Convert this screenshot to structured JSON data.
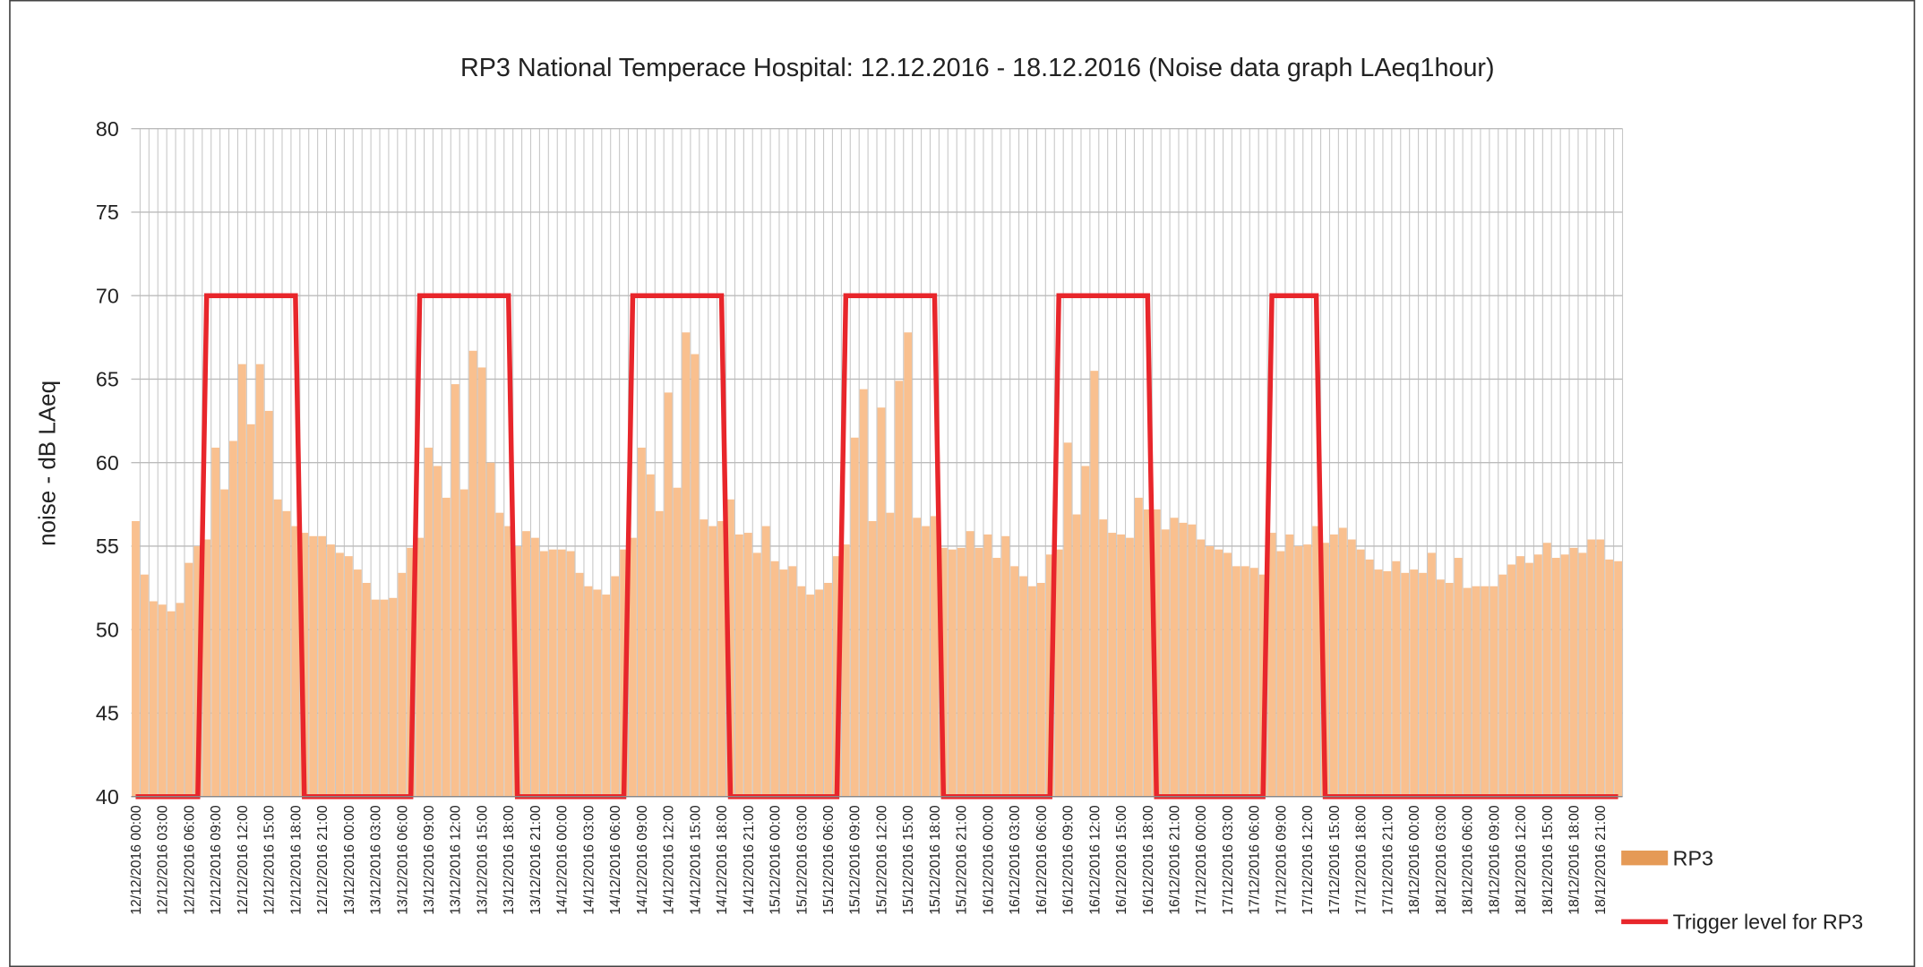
{
  "chart_data": {
    "type": "bar",
    "title": "RP3 National Temperace Hospital: 12.12.2016 - 18.12.2016 (Noise data graph LAeq1hour)",
    "y_label": "noise - dB LAeq",
    "categories": [
      "12/12/2016 00:00",
      null,
      null,
      "12/12/2016 03:00",
      null,
      null,
      "12/12/2016 06:00",
      null,
      null,
      "12/12/2016 09:00",
      null,
      null,
      "12/12/2016 12:00",
      null,
      null,
      "12/12/2016 15:00",
      null,
      null,
      "12/12/2016 18:00",
      null,
      null,
      "12/12/2016 21:00",
      null,
      null,
      "13/12/2016 00:00",
      null,
      null,
      "13/12/2016 03:00",
      null,
      null,
      "13/12/2016 06:00",
      null,
      null,
      "13/12/2016 09:00",
      null,
      null,
      "13/12/2016 12:00",
      null,
      null,
      "13/12/2016 15:00",
      null,
      null,
      "13/12/2016 18:00",
      null,
      null,
      "13/12/2016 21:00",
      null,
      null,
      "14/12/2016 00:00",
      null,
      null,
      "14/12/2016 03:00",
      null,
      null,
      "14/12/2016 06:00",
      null,
      null,
      "14/12/2016 09:00",
      null,
      null,
      "14/12/2016 12:00",
      null,
      null,
      "14/12/2016 15:00",
      null,
      null,
      "14/12/2016 18:00",
      null,
      null,
      "14/12/2016 21:00",
      null,
      null,
      "15/12/2016 00:00",
      null,
      null,
      "15/12/2016 03:00",
      null,
      null,
      "15/12/2016 06:00",
      null,
      null,
      "15/12/2016 09:00",
      null,
      null,
      "15/12/2016 12:00",
      null,
      null,
      "15/12/2016 15:00",
      null,
      null,
      "15/12/2016 18:00",
      null,
      null,
      "15/12/2016 21:00",
      null,
      null,
      "16/12/2016 00:00",
      null,
      null,
      "16/12/2016 03:00",
      null,
      null,
      "16/12/2016 06:00",
      null,
      null,
      "16/12/2016 09:00",
      null,
      null,
      "16/12/2016 12:00",
      null,
      null,
      "16/12/2016 15:00",
      null,
      null,
      "16/12/2016 18:00",
      null,
      null,
      "16/12/2016 21:00",
      null,
      null,
      "17/12/2016 00:00",
      null,
      null,
      "17/12/2016 03:00",
      null,
      null,
      "17/12/2016 06:00",
      null,
      null,
      "17/12/2016 09:00",
      null,
      null,
      "17/12/2016 12:00",
      null,
      null,
      "17/12/2016 15:00",
      null,
      null,
      "17/12/2016 18:00",
      null,
      null,
      "17/12/2016 21:00",
      null,
      null,
      "18/12/2016 00:00",
      null,
      null,
      "18/12/2016 03:00",
      null,
      null,
      "18/12/2016 06:00",
      null,
      null,
      "18/12/2016 09:00",
      null,
      null,
      "18/12/2016 12:00",
      null,
      null,
      "18/12/2016 15:00",
      null,
      null,
      "18/12/2016 18:00",
      null,
      null,
      "18/12/2016 21:00",
      null,
      null
    ],
    "series": [
      {
        "name": "RP3",
        "color": "#f9c08f",
        "legend_color": "#e59a56",
        "type": "bar",
        "values": [
          56.5,
          53.3,
          51.7,
          51.5,
          51.1,
          51.6,
          54,
          55,
          55.4,
          60.9,
          58.4,
          61.3,
          65.9,
          62.3,
          65.9,
          63.1,
          57.8,
          57.1,
          56.2,
          55.8,
          55.6,
          55.6,
          55.1,
          54.6,
          54.4,
          53.6,
          52.8,
          51.8,
          51.8,
          51.9,
          53.4,
          54.9,
          55.5,
          60.9,
          59.8,
          57.9,
          64.7,
          58.4,
          66.7,
          65.7,
          60,
          57,
          56.2,
          55,
          55.9,
          55.5,
          54.7,
          54.8,
          54.8,
          54.7,
          53.4,
          52.6,
          52.4,
          52.1,
          53.2,
          54.8,
          55.5,
          60.9,
          59.3,
          57.1,
          64.2,
          58.5,
          67.8,
          66.5,
          56.6,
          56.2,
          56.5,
          57.8,
          55.7,
          55.8,
          54.6,
          56.2,
          54.1,
          53.6,
          53.8,
          52.6,
          52.1,
          52.4,
          52.8,
          54.4,
          55.1,
          61.5,
          64.4,
          56.5,
          63.3,
          57,
          64.9,
          67.8,
          56.7,
          56.2,
          56.8,
          54.9,
          54.8,
          54.9,
          55.9,
          54.9,
          55.7,
          54.3,
          55.6,
          53.8,
          53.2,
          52.6,
          52.8,
          54.5,
          54.8,
          61.2,
          56.9,
          59.8,
          65.5,
          56.6,
          55.8,
          55.7,
          55.5,
          57.9,
          57.2,
          57.2,
          56,
          56.7,
          56.4,
          56.3,
          55.4,
          55,
          54.8,
          54.6,
          53.8,
          53.8,
          53.7,
          53.3,
          55.8,
          54.7,
          55.7,
          55,
          55.1,
          56.2,
          55.2,
          55.7,
          56.1,
          55.4,
          54.8,
          54.2,
          53.6,
          53.5,
          54.1,
          53.4,
          53.6,
          53.4,
          54.6,
          53,
          52.8,
          54.3,
          52.5,
          52.6,
          52.6,
          52.6,
          53.3,
          53.9,
          54.4,
          54,
          54.5,
          55.2,
          54.3,
          54.5,
          54.9,
          54.6,
          55.4,
          55.4,
          54.2,
          54.1
        ]
      },
      {
        "name": "Trigger level for RP3",
        "color": "#e8262b",
        "type": "line",
        "values": [
          40,
          40,
          40,
          40,
          40,
          40,
          40,
          40,
          70,
          70,
          70,
          70,
          70,
          70,
          70,
          70,
          70,
          70,
          70,
          40,
          40,
          40,
          40,
          40,
          40,
          40,
          40,
          40,
          40,
          40,
          40,
          40,
          70,
          70,
          70,
          70,
          70,
          70,
          70,
          70,
          70,
          70,
          70,
          40,
          40,
          40,
          40,
          40,
          40,
          40,
          40,
          40,
          40,
          40,
          40,
          40,
          70,
          70,
          70,
          70,
          70,
          70,
          70,
          70,
          70,
          70,
          70,
          40,
          40,
          40,
          40,
          40,
          40,
          40,
          40,
          40,
          40,
          40,
          40,
          40,
          70,
          70,
          70,
          70,
          70,
          70,
          70,
          70,
          70,
          70,
          70,
          40,
          40,
          40,
          40,
          40,
          40,
          40,
          40,
          40,
          40,
          40,
          40,
          40,
          70,
          70,
          70,
          70,
          70,
          70,
          70,
          70,
          70,
          70,
          70,
          40,
          40,
          40,
          40,
          40,
          40,
          40,
          40,
          40,
          40,
          40,
          40,
          40,
          70,
          70,
          70,
          70,
          70,
          70,
          40,
          40,
          40,
          40,
          40,
          40,
          40,
          40,
          40,
          40,
          40,
          40,
          40,
          40,
          40,
          40,
          40,
          40,
          40,
          40,
          40,
          40,
          40,
          40,
          40,
          40,
          40,
          40,
          40,
          40,
          40,
          40,
          40,
          40
        ]
      }
    ],
    "ylim": [
      40,
      80
    ],
    "yticks": [
      40,
      45,
      50,
      55,
      60,
      65,
      70,
      75,
      80
    ],
    "grid": true,
    "legend": "right"
  }
}
